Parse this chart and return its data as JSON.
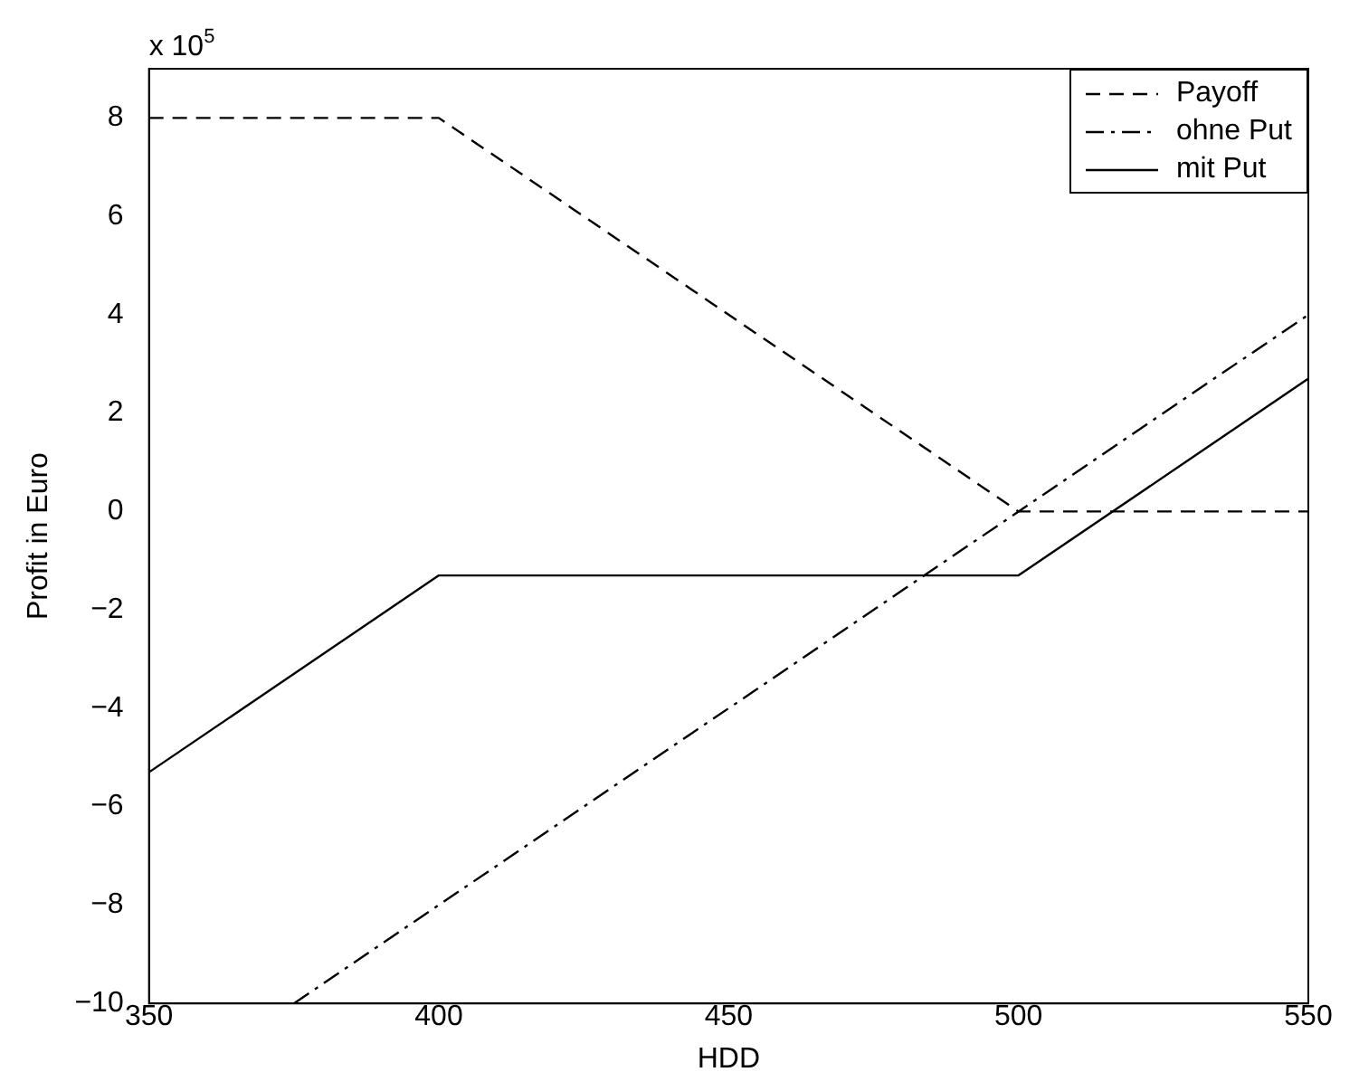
{
  "chart_data": {
    "type": "line",
    "xlabel": "HDD",
    "ylabel": "Profit in Euro",
    "annotations": [
      "x 10$^{5}$"
    ],
    "xlim": [
      350,
      550
    ],
    "xticks": [
      350,
      400,
      450,
      500,
      550
    ],
    "ylim": [
      -10,
      9
    ],
    "yticks": [
      -10,
      -8,
      -6,
      -4,
      -2,
      0,
      2,
      4,
      6,
      8
    ],
    "grid": false,
    "legend": "top right",
    "marker": "none",
    "series": [
      {
        "name": "Payoff",
        "color": "#000000",
        "line_style": "dashed",
        "x": [
          350,
          400,
          500,
          550
        ],
        "values": [
          8,
          8,
          0,
          0
        ]
      },
      {
        "name": "ohne Put",
        "color": "#000000",
        "line_style": "dashdot",
        "x": [
          375,
          550
        ],
        "values": [
          -10,
          4
        ]
      },
      {
        "name": "mit Put",
        "color": "#000000",
        "line_style": "solid",
        "x": [
          350,
          400,
          500,
          550
        ],
        "values": [
          -5.3,
          -1.3,
          -1.3,
          2.7
        ]
      }
    ]
  }
}
